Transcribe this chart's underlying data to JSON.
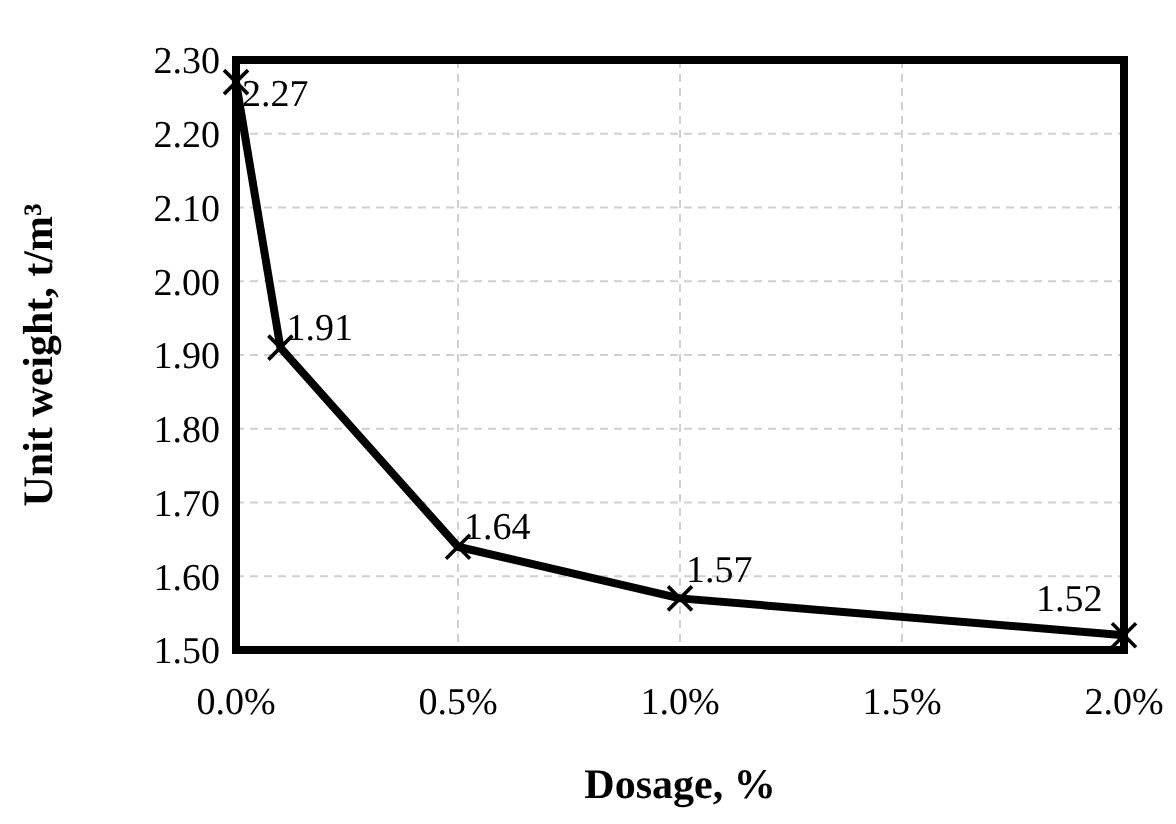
{
  "chart_data": {
    "type": "line",
    "xlabel": "Dosage, %",
    "ylabel": "Unit weight, t/m³",
    "x": [
      0,
      0.1,
      0.5,
      1.0,
      2.0
    ],
    "series": [
      {
        "color": "#000000",
        "values": [
          2.27,
          1.91,
          1.64,
          1.57,
          1.52
        ]
      }
    ],
    "xlim": [
      0,
      2
    ],
    "xticks": [
      {
        "value": 0,
        "label": "0.0%"
      },
      {
        "value": 0.5,
        "label": "0.5%"
      },
      {
        "value": 1,
        "label": "1.0%"
      },
      {
        "value": 1.5,
        "label": "1.5%"
      },
      {
        "value": 2,
        "label": "2.0%"
      }
    ],
    "ylim": [
      1.5,
      2.3
    ],
    "yticks": [
      {
        "value": 1.5,
        "label": "1.50"
      },
      {
        "value": 1.6,
        "label": "1.60"
      },
      {
        "value": 1.7,
        "label": "1.70"
      },
      {
        "value": 1.8,
        "label": "1.80"
      },
      {
        "value": 1.9,
        "label": "1.90"
      },
      {
        "value": 2.0,
        "label": "2.00"
      },
      {
        "value": 2.1,
        "label": "2.10"
      },
      {
        "value": 2.2,
        "label": "2.20"
      },
      {
        "value": 2.3,
        "label": "2.30"
      }
    ],
    "grid": true,
    "marker": "cross",
    "line_style": "solid",
    "data_labels": true
  }
}
